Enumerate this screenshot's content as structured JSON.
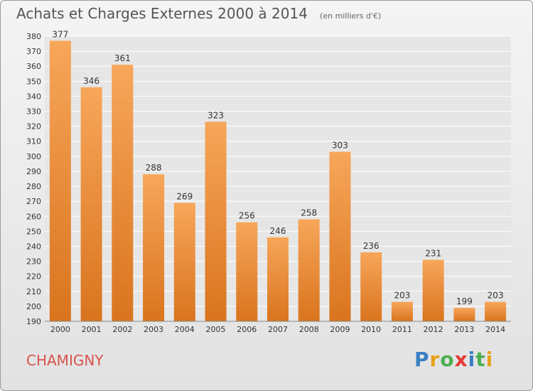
{
  "header": {
    "title": "Achats et Charges Externes 2000 à 2014",
    "subtitle": "(en milliers d'€)"
  },
  "footer": {
    "commune": "CHAMIGNY",
    "brand": "Proxiti",
    "brand_colors": [
      "#3a7fc4",
      "#e8a11a",
      "#4caf50",
      "#e53935",
      "#3a7fc4",
      "#4caf50",
      "#e8a11a"
    ]
  },
  "colors": {
    "bar_light": "#f7a65a",
    "bar_dark": "#d9741e",
    "grid": "#ffffff",
    "plot_bg": "#e6e6e6"
  },
  "chart_data": {
    "type": "bar",
    "title": "Achats et Charges Externes 2000 à 2014",
    "subtitle": "(en milliers d'€)",
    "categories": [
      "2000",
      "2001",
      "2002",
      "2003",
      "2004",
      "2005",
      "2006",
      "2007",
      "2008",
      "2009",
      "2010",
      "2011",
      "2012",
      "2013",
      "2014"
    ],
    "values": [
      377,
      346,
      361,
      288,
      269,
      323,
      256,
      246,
      258,
      303,
      236,
      203,
      231,
      199,
      203
    ],
    "ylim": [
      190,
      380
    ],
    "yticks": [
      190,
      200,
      210,
      220,
      230,
      240,
      250,
      260,
      270,
      280,
      290,
      300,
      310,
      320,
      330,
      340,
      350,
      360,
      370,
      380
    ],
    "grid": true,
    "legend": "none"
  }
}
